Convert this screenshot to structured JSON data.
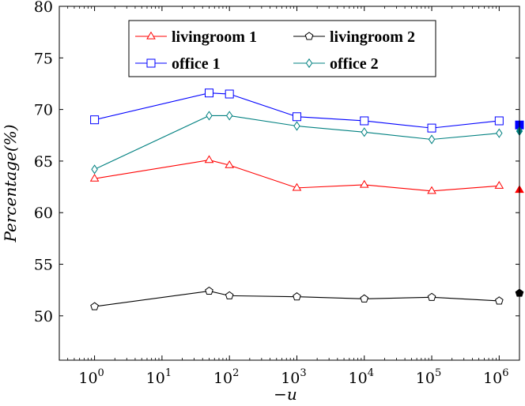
{
  "chart_data": {
    "type": "line",
    "xscale": "log",
    "xlabel": "−u",
    "ylabel": "Percentage(%)",
    "xlim": [
      0.3,
      2000000
    ],
    "ylim": [
      45.7,
      80
    ],
    "x_ticks": [
      1,
      10,
      100,
      1000,
      10000,
      100000,
      1000000
    ],
    "x_tick_labels": [
      {
        "base": "10",
        "exp": "0"
      },
      {
        "base": "10",
        "exp": "1"
      },
      {
        "base": "10",
        "exp": "2"
      },
      {
        "base": "10",
        "exp": "3"
      },
      {
        "base": "10",
        "exp": "4"
      },
      {
        "base": "10",
        "exp": "5"
      },
      {
        "base": "10",
        "exp": "6"
      }
    ],
    "y_ticks": [
      50,
      55,
      60,
      65,
      70,
      75,
      80
    ],
    "y_tick_labels": [
      "50",
      "55",
      "60",
      "65",
      "70",
      "75",
      "80"
    ],
    "legend_position": "top-center",
    "series": [
      {
        "name": "livingroom 1",
        "color": "#ff0000",
        "marker": "triangle",
        "x": [
          1,
          50,
          100,
          1000,
          10000,
          100000,
          1000000
        ],
        "values": [
          63.3,
          65.1,
          64.6,
          62.4,
          62.7,
          62.1,
          62.6
        ],
        "endpoint": {
          "x": 2000000,
          "value": 62.2
        }
      },
      {
        "name": "livingroom 2",
        "color": "#000000",
        "marker": "pentagon",
        "x": [
          1,
          50,
          100,
          1000,
          10000,
          100000,
          1000000
        ],
        "values": [
          50.9,
          52.4,
          51.95,
          51.85,
          51.65,
          51.8,
          51.45
        ],
        "endpoint": {
          "x": 2000000,
          "value": 52.2
        }
      },
      {
        "name": "office 1",
        "color": "#0000ff",
        "marker": "square",
        "x": [
          1,
          50,
          100,
          1000,
          10000,
          100000,
          1000000
        ],
        "values": [
          69.0,
          71.6,
          71.5,
          69.3,
          68.9,
          68.2,
          68.9
        ],
        "endpoint": {
          "x": 2000000,
          "value": 68.5
        }
      },
      {
        "name": "office 2",
        "color": "#008080",
        "marker": "diamond",
        "x": [
          1,
          50,
          100,
          1000,
          10000,
          100000,
          1000000
        ],
        "values": [
          64.2,
          69.4,
          69.4,
          68.4,
          67.8,
          67.1,
          67.7
        ],
        "endpoint": {
          "x": 2000000,
          "value": 67.9
        }
      }
    ]
  }
}
